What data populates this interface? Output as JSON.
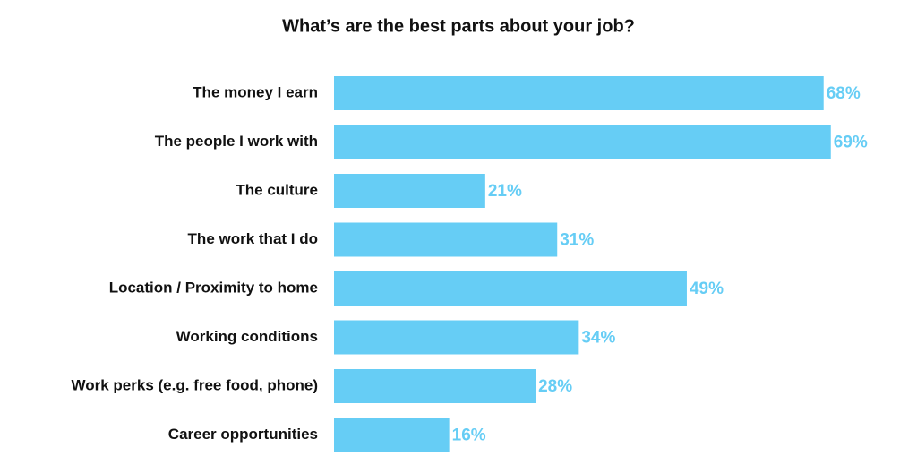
{
  "chart_data": {
    "type": "barh",
    "title": "What’s are the best parts about your job?",
    "categories": [
      "The money I earn",
      "The people I work with",
      "The culture",
      "The work that I do",
      "Location / Proximity to home",
      "Working conditions",
      "Work perks (e.g. free food, phone)",
      "Career opportunities"
    ],
    "values": [
      68,
      69,
      21,
      31,
      49,
      34,
      28,
      16
    ],
    "value_labels": [
      "68%",
      "69%",
      "21%",
      "31%",
      "49%",
      "34%",
      "28%",
      "16%"
    ],
    "color": "#66cdf5"
  }
}
